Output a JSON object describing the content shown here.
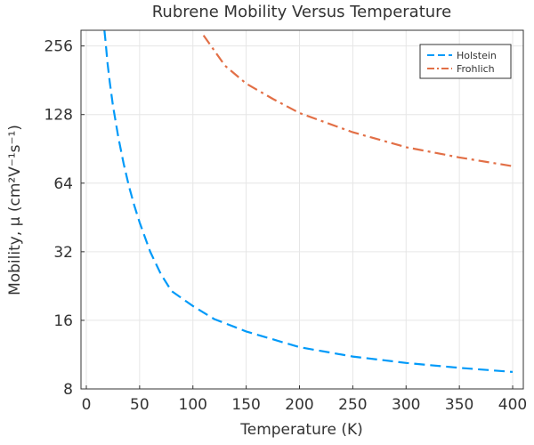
{
  "chart_data": {
    "type": "line",
    "title": "Rubrene Mobility Versus Temperature",
    "xlabel": "Temperature (K)",
    "ylabel": "Mobility, μ (cm²V⁻¹s⁻¹)",
    "xlim": [
      -5,
      410
    ],
    "ylim": [
      8,
      300
    ],
    "yscale": "log2",
    "xticks": [
      0,
      50,
      100,
      150,
      200,
      250,
      300,
      350,
      400
    ],
    "yticks": [
      8,
      16,
      32,
      64,
      128,
      256
    ],
    "grid": true,
    "legend_position": "top-right",
    "series": [
      {
        "name": "Holstein",
        "color": "#009af9",
        "dash": "dashed",
        "x": [
          17,
          18,
          20,
          22,
          25,
          30,
          35,
          40,
          45,
          50,
          60,
          70,
          80,
          100,
          120,
          150,
          200,
          250,
          300,
          350,
          400
        ],
        "y": [
          300,
          270,
          214,
          178,
          140,
          102,
          78,
          62,
          51,
          43,
          32,
          25.5,
          21.5,
          18.5,
          16.2,
          14.3,
          12.2,
          11.1,
          10.4,
          9.9,
          9.5
        ]
      },
      {
        "name": "Frohlich",
        "color": "#e26f46",
        "dash": "dashdot",
        "x": [
          110,
          130,
          150,
          175,
          200,
          250,
          300,
          350,
          400
        ],
        "y": [
          285,
          210,
          175,
          150,
          130,
          107,
          92,
          83,
          76
        ]
      }
    ]
  }
}
